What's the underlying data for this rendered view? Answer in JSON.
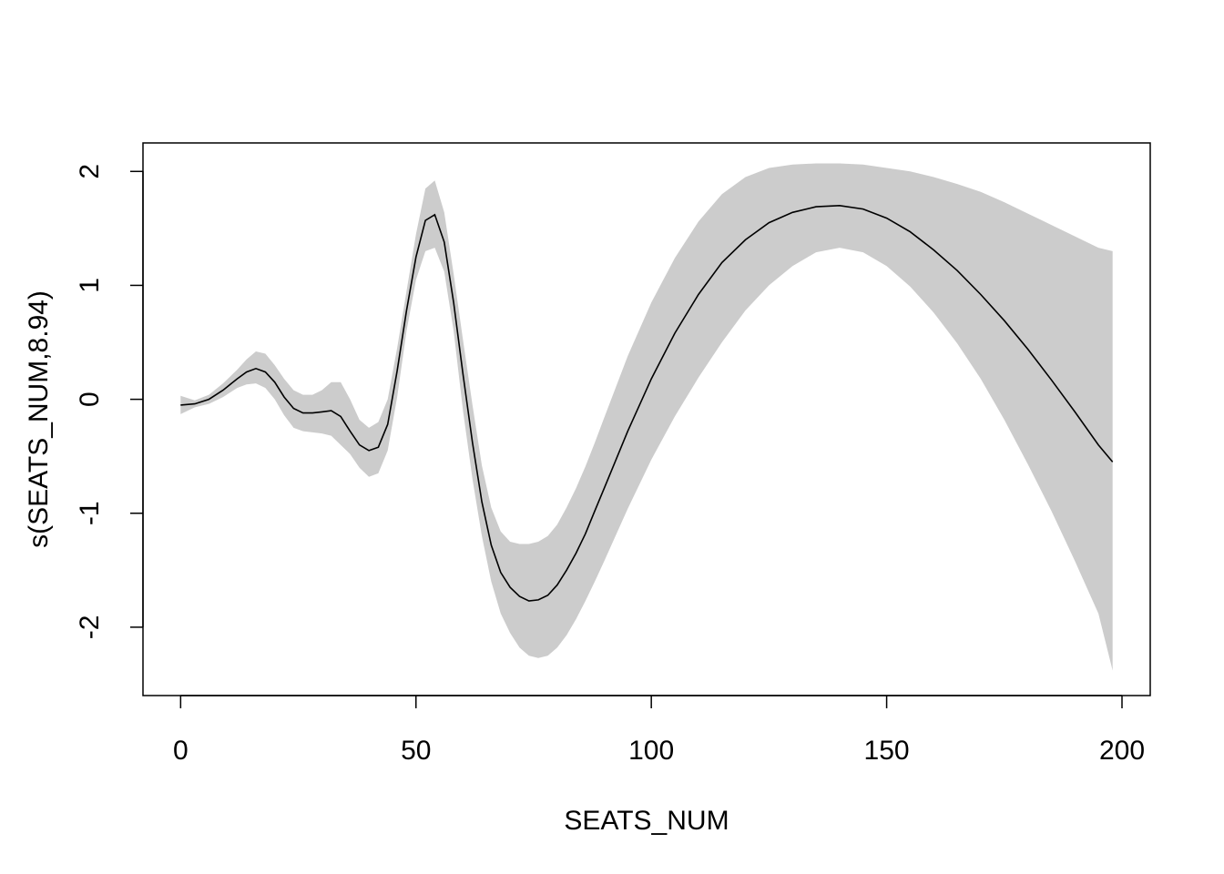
{
  "chart_data": {
    "type": "line",
    "title": "",
    "xlabel": "SEATS_NUM",
    "ylabel": "s(SEATS_NUM,8.94)",
    "xlim": [
      -8,
      206
    ],
    "ylim": [
      -2.6,
      2.25
    ],
    "x_ticks": [
      0,
      50,
      100,
      150,
      200
    ],
    "y_ticks": [
      -2,
      -1,
      0,
      1,
      2
    ],
    "colors": {
      "band": "#cccccc",
      "line": "#000000"
    },
    "series": [
      {
        "x": [
          0,
          3,
          6,
          9,
          12,
          14,
          16,
          18,
          20,
          22,
          24,
          26,
          28,
          30,
          32,
          34,
          36,
          38,
          40,
          42,
          44,
          46,
          48,
          50,
          52,
          54,
          56,
          58,
          60,
          62,
          64,
          66,
          68,
          70,
          72,
          74,
          76,
          78,
          80,
          82,
          84,
          86,
          88,
          90,
          95,
          100,
          105,
          110,
          115,
          120,
          125,
          130,
          135,
          140,
          145,
          150,
          155,
          160,
          165,
          170,
          175,
          180,
          185,
          190,
          195,
          198
        ],
        "y": [
          -0.05,
          -0.04,
          0.0,
          0.08,
          0.18,
          0.24,
          0.27,
          0.24,
          0.15,
          0.02,
          -0.08,
          -0.12,
          -0.12,
          -0.11,
          -0.1,
          -0.15,
          -0.28,
          -0.4,
          -0.45,
          -0.42,
          -0.22,
          0.25,
          0.78,
          1.25,
          1.57,
          1.62,
          1.38,
          0.85,
          0.22,
          -0.38,
          -0.9,
          -1.28,
          -1.52,
          -1.65,
          -1.73,
          -1.77,
          -1.76,
          -1.72,
          -1.63,
          -1.5,
          -1.35,
          -1.18,
          -0.98,
          -0.78,
          -0.28,
          0.18,
          0.58,
          0.92,
          1.2,
          1.4,
          1.55,
          1.64,
          1.69,
          1.7,
          1.67,
          1.59,
          1.47,
          1.31,
          1.13,
          0.92,
          0.69,
          0.44,
          0.17,
          -0.11,
          -0.4,
          -0.55
        ],
        "lower": [
          -0.13,
          -0.07,
          -0.04,
          0.02,
          0.1,
          0.13,
          0.14,
          0.1,
          0.0,
          -0.14,
          -0.25,
          -0.28,
          -0.29,
          -0.3,
          -0.32,
          -0.4,
          -0.48,
          -0.6,
          -0.68,
          -0.65,
          -0.45,
          0.02,
          0.6,
          1.05,
          1.3,
          1.33,
          1.12,
          0.6,
          -0.1,
          -0.7,
          -1.2,
          -1.6,
          -1.88,
          -2.05,
          -2.18,
          -2.25,
          -2.27,
          -2.25,
          -2.18,
          -2.07,
          -1.93,
          -1.77,
          -1.6,
          -1.42,
          -0.96,
          -0.53,
          -0.15,
          0.19,
          0.5,
          0.78,
          1.0,
          1.17,
          1.29,
          1.33,
          1.29,
          1.17,
          0.99,
          0.76,
          0.49,
          0.18,
          -0.18,
          -0.57,
          -0.98,
          -1.42,
          -1.88,
          -2.38
        ],
        "upper": [
          0.03,
          -0.01,
          0.04,
          0.14,
          0.26,
          0.35,
          0.42,
          0.4,
          0.3,
          0.18,
          0.08,
          0.04,
          0.04,
          0.08,
          0.15,
          0.15,
          0.0,
          -0.18,
          -0.25,
          -0.2,
          0.0,
          0.45,
          0.95,
          1.45,
          1.85,
          1.92,
          1.64,
          1.1,
          0.52,
          -0.05,
          -0.58,
          -0.95,
          -1.16,
          -1.25,
          -1.27,
          -1.27,
          -1.25,
          -1.2,
          -1.1,
          -0.95,
          -0.78,
          -0.59,
          -0.38,
          -0.16,
          0.38,
          0.85,
          1.24,
          1.56,
          1.8,
          1.95,
          2.03,
          2.06,
          2.07,
          2.07,
          2.06,
          2.03,
          2.0,
          1.95,
          1.89,
          1.82,
          1.73,
          1.63,
          1.53,
          1.43,
          1.33,
          1.3
        ]
      }
    ]
  }
}
